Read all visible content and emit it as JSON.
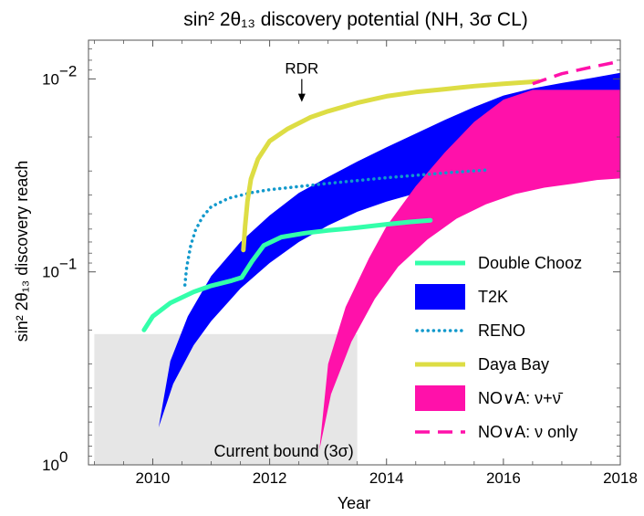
{
  "chart_data": {
    "type": "line",
    "title": "sin² 2θ₁₃  discovery potential (NH, 3σ CL)",
    "xlabel": "Year",
    "ylabel": "sin² 2θ₁₃  discovery reach",
    "xlim": [
      2008.9,
      2018.0
    ],
    "ylim": [
      1.0,
      0.0063
    ],
    "y_scale": "log",
    "y_inverted": true,
    "grid": false,
    "legend_position": "bottom-right",
    "x_ticks": [
      {
        "value": 2010,
        "label": "2010"
      },
      {
        "value": 2012,
        "label": "2012"
      },
      {
        "value": 2014,
        "label": "2014"
      },
      {
        "value": 2016,
        "label": "2016"
      },
      {
        "value": 2018,
        "label": "2018"
      }
    ],
    "y_ticks": [
      {
        "value": 1,
        "base": "10",
        "exp": "0"
      },
      {
        "value": 0.1,
        "base": "10",
        "exp": "−1"
      },
      {
        "value": 0.01,
        "base": "10",
        "exp": "−2"
      }
    ],
    "current_bound": {
      "x": [
        2009.0,
        2013.5
      ],
      "y": [
        1.0,
        0.21
      ],
      "color": "#e6e6e6",
      "label": "Current bound (3σ)"
    },
    "annotation": {
      "text": "RDR",
      "x": 2012.55,
      "y": 0.0133
    },
    "series": [
      {
        "name": "Double Chooz",
        "kind": "line",
        "color": "#33ffaa",
        "points": [
          [
            2009.85,
            0.2
          ],
          [
            2010.0,
            0.17
          ],
          [
            2010.3,
            0.145
          ],
          [
            2010.7,
            0.127
          ],
          [
            2011.0,
            0.118
          ],
          [
            2011.35,
            0.111
          ],
          [
            2011.52,
            0.107
          ],
          [
            2011.7,
            0.088
          ],
          [
            2011.9,
            0.073
          ],
          [
            2012.2,
            0.066
          ],
          [
            2012.6,
            0.063
          ],
          [
            2013.0,
            0.061
          ],
          [
            2013.5,
            0.059
          ],
          [
            2014.0,
            0.0567
          ],
          [
            2014.4,
            0.0551
          ],
          [
            2014.75,
            0.054
          ]
        ]
      },
      {
        "name": "T2K",
        "kind": "band",
        "color": "#0000ff",
        "upper": [
          [
            2010.1,
            0.64
          ],
          [
            2010.3,
            0.29
          ],
          [
            2010.6,
            0.17
          ],
          [
            2011.0,
            0.105
          ],
          [
            2011.5,
            0.07
          ],
          [
            2012.0,
            0.051
          ],
          [
            2012.5,
            0.039
          ],
          [
            2013.0,
            0.0322
          ],
          [
            2013.5,
            0.0268
          ],
          [
            2014.0,
            0.0226
          ],
          [
            2014.5,
            0.0192
          ],
          [
            2015.0,
            0.0163
          ],
          [
            2015.5,
            0.014
          ],
          [
            2016.0,
            0.0122
          ],
          [
            2016.5,
            0.0112
          ],
          [
            2017.0,
            0.0105
          ],
          [
            2017.5,
            0.0099
          ],
          [
            2018.0,
            0.0093
          ]
        ],
        "lower": [
          [
            2010.1,
            0.64
          ],
          [
            2010.35,
            0.38
          ],
          [
            2010.7,
            0.24
          ],
          [
            2011.0,
            0.18
          ],
          [
            2011.5,
            0.122
          ],
          [
            2012.0,
            0.09
          ],
          [
            2012.5,
            0.07
          ],
          [
            2013.0,
            0.0575
          ],
          [
            2013.5,
            0.0488
          ],
          [
            2014.0,
            0.0432
          ],
          [
            2014.5,
            0.0392
          ],
          [
            2015.0,
            0.0362
          ],
          [
            2015.5,
            0.0339
          ],
          [
            2016.0,
            0.0322
          ],
          [
            2016.5,
            0.0309
          ],
          [
            2017.0,
            0.0298
          ],
          [
            2017.5,
            0.0288
          ],
          [
            2018.0,
            0.0279
          ]
        ]
      },
      {
        "name": "RENO",
        "kind": "dotted",
        "color": "#1199cc",
        "points": [
          [
            2010.55,
            0.117
          ],
          [
            2010.58,
            0.095
          ],
          [
            2010.65,
            0.073
          ],
          [
            2010.73,
            0.061
          ],
          [
            2010.85,
            0.052
          ],
          [
            2011.0,
            0.046
          ],
          [
            2011.3,
            0.0415
          ],
          [
            2011.7,
            0.0388
          ],
          [
            2012.0,
            0.0375
          ],
          [
            2013.0,
            0.0348
          ],
          [
            2014.0,
            0.0325
          ],
          [
            2015.0,
            0.0307
          ],
          [
            2015.75,
            0.0296
          ]
        ]
      },
      {
        "name": "Daya Bay",
        "kind": "line",
        "color": "#dddd44",
        "points": [
          [
            2011.55,
            0.077
          ],
          [
            2011.58,
            0.058
          ],
          [
            2011.62,
            0.043
          ],
          [
            2011.68,
            0.033
          ],
          [
            2011.8,
            0.026
          ],
          [
            2012.0,
            0.021
          ],
          [
            2012.3,
            0.0182
          ],
          [
            2012.7,
            0.0158
          ],
          [
            2013.0,
            0.0147
          ],
          [
            2013.5,
            0.0133
          ],
          [
            2014.0,
            0.0123
          ],
          [
            2014.5,
            0.0117
          ],
          [
            2015.0,
            0.0113
          ],
          [
            2015.5,
            0.0109
          ],
          [
            2016.0,
            0.0106
          ],
          [
            2016.6,
            0.0103
          ]
        ]
      },
      {
        "name": "NO∨A: ν+ν̄",
        "kind": "band",
        "color": "#ff11aa",
        "upper": [
          [
            2012.85,
            0.84
          ],
          [
            2013.0,
            0.3
          ],
          [
            2013.3,
            0.152
          ],
          [
            2013.7,
            0.085
          ],
          [
            2014.0,
            0.058
          ],
          [
            2014.5,
            0.036
          ],
          [
            2015.0,
            0.024
          ],
          [
            2015.5,
            0.0167
          ],
          [
            2016.0,
            0.0128
          ],
          [
            2016.5,
            0.0114
          ],
          [
            2017.0,
            0.0114
          ],
          [
            2017.5,
            0.0114
          ],
          [
            2018.0,
            0.0114
          ]
        ],
        "lower": [
          [
            2012.85,
            0.84
          ],
          [
            2013.05,
            0.43
          ],
          [
            2013.4,
            0.23
          ],
          [
            2013.8,
            0.138
          ],
          [
            2014.2,
            0.094
          ],
          [
            2014.7,
            0.068
          ],
          [
            2015.2,
            0.053
          ],
          [
            2015.7,
            0.0447
          ],
          [
            2016.2,
            0.0395
          ],
          [
            2016.7,
            0.0366
          ],
          [
            2017.2,
            0.0349
          ],
          [
            2017.6,
            0.0334
          ],
          [
            2018.0,
            0.0328
          ]
        ]
      },
      {
        "name": "NO∨A: ν only",
        "kind": "dashed",
        "color": "#ff11aa",
        "points": [
          [
            2016.5,
            0.0106
          ],
          [
            2017.0,
            0.0094
          ],
          [
            2017.5,
            0.0087
          ],
          [
            2018.0,
            0.0081
          ]
        ]
      }
    ]
  }
}
